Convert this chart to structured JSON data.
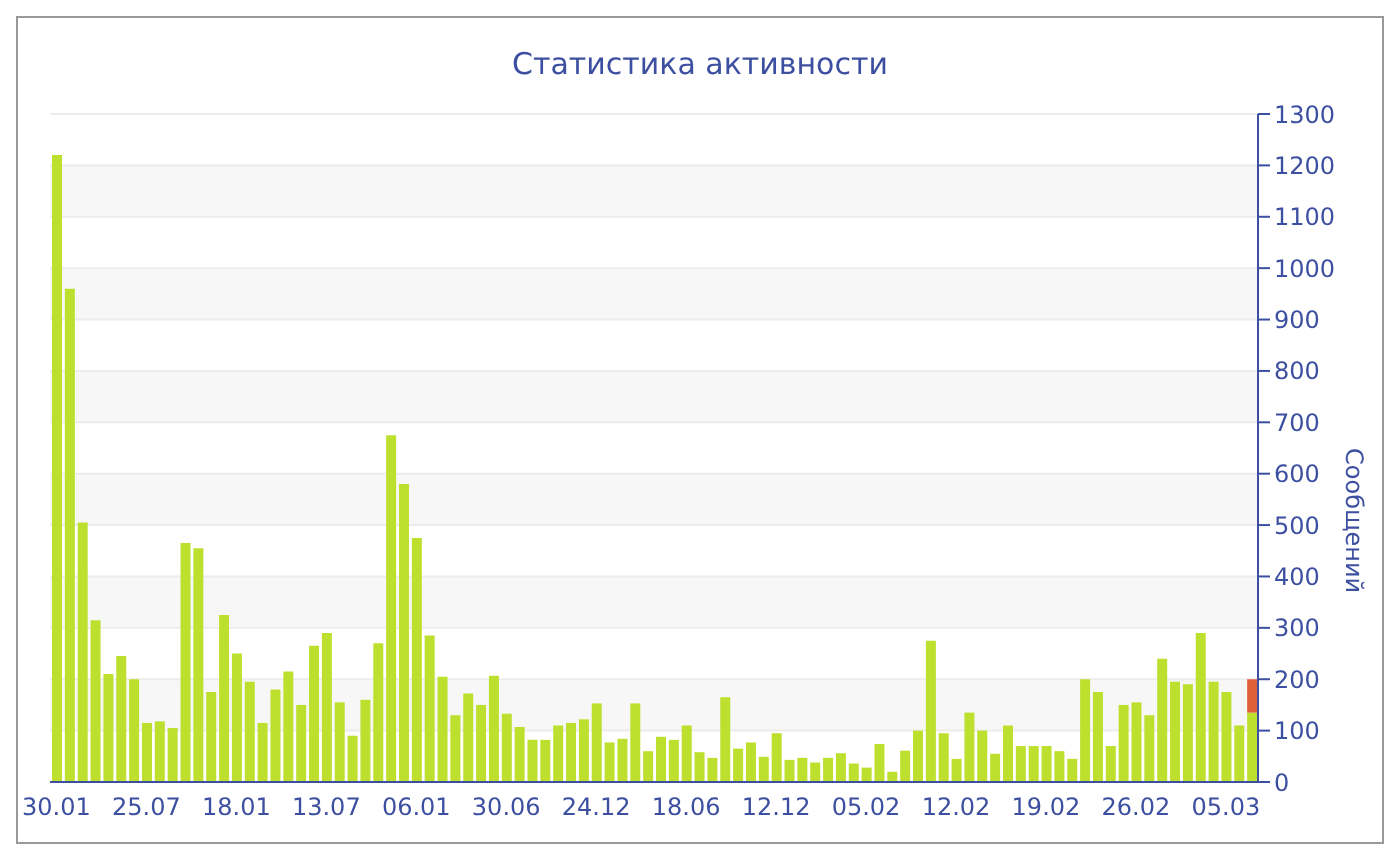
{
  "chart_data": {
    "type": "bar",
    "title": "Статистика активности",
    "ylabel": "Сообщений",
    "stacked": true,
    "grid": "y",
    "legend": false,
    "categories": [
      "30.01",
      null,
      null,
      null,
      null,
      null,
      null,
      "25.07",
      null,
      null,
      null,
      null,
      null,
      null,
      "18.01",
      null,
      null,
      null,
      null,
      null,
      null,
      "13.07",
      null,
      null,
      null,
      null,
      null,
      null,
      "06.01",
      null,
      null,
      null,
      null,
      null,
      null,
      "30.06",
      null,
      null,
      null,
      null,
      null,
      null,
      "24.12",
      null,
      null,
      null,
      null,
      null,
      null,
      "18.06",
      null,
      null,
      null,
      null,
      null,
      null,
      "12.12",
      null,
      null,
      null,
      null,
      null,
      null,
      "05.02",
      null,
      null,
      null,
      null,
      null,
      null,
      "12.02",
      null,
      null,
      null,
      null,
      null,
      null,
      "19.02",
      null,
      null,
      null,
      null,
      null,
      null,
      "26.02",
      null,
      null,
      null,
      null,
      null,
      null,
      "05.03",
      null,
      null
    ],
    "series": [
      {
        "color": "#bde02f",
        "values": [
          1220,
          960,
          505,
          315,
          210,
          245,
          200,
          115,
          118,
          105,
          465,
          455,
          175,
          325,
          250,
          195,
          115,
          180,
          215,
          150,
          265,
          290,
          155,
          90,
          160,
          270,
          675,
          580,
          475,
          285,
          205,
          130,
          172,
          150,
          207,
          133,
          107,
          82,
          82,
          110,
          115,
          122,
          153,
          77,
          84,
          153,
          60,
          88,
          82,
          110,
          58,
          47,
          165,
          65,
          77,
          49,
          95,
          43,
          47,
          38,
          47,
          56,
          36,
          28,
          74,
          20,
          61,
          100,
          275,
          95,
          45,
          135,
          100,
          55,
          110,
          70,
          70,
          70,
          60,
          45,
          200,
          175,
          70,
          150,
          155,
          130,
          240,
          195,
          190,
          290,
          195,
          175,
          110,
          135
        ]
      },
      {
        "color": "#e0603a",
        "values": [
          null,
          null,
          null,
          null,
          null,
          null,
          null,
          null,
          null,
          null,
          null,
          null,
          null,
          null,
          null,
          null,
          null,
          null,
          null,
          null,
          null,
          null,
          null,
          null,
          null,
          null,
          null,
          null,
          null,
          null,
          null,
          null,
          null,
          null,
          null,
          null,
          null,
          null,
          null,
          null,
          null,
          null,
          null,
          null,
          null,
          null,
          null,
          null,
          null,
          null,
          null,
          null,
          null,
          null,
          null,
          null,
          null,
          null,
          null,
          null,
          null,
          null,
          null,
          null,
          null,
          null,
          null,
          null,
          null,
          null,
          null,
          null,
          null,
          null,
          null,
          null,
          null,
          null,
          null,
          null,
          null,
          null,
          null,
          null,
          null,
          null,
          null,
          null,
          null,
          null,
          null,
          null,
          null,
          65
        ]
      }
    ],
    "ylim": [
      0,
      1300
    ],
    "yticks": [
      0,
      100,
      200,
      300,
      400,
      500,
      600,
      700,
      800,
      900,
      1000,
      1100,
      1200,
      1300
    ]
  }
}
